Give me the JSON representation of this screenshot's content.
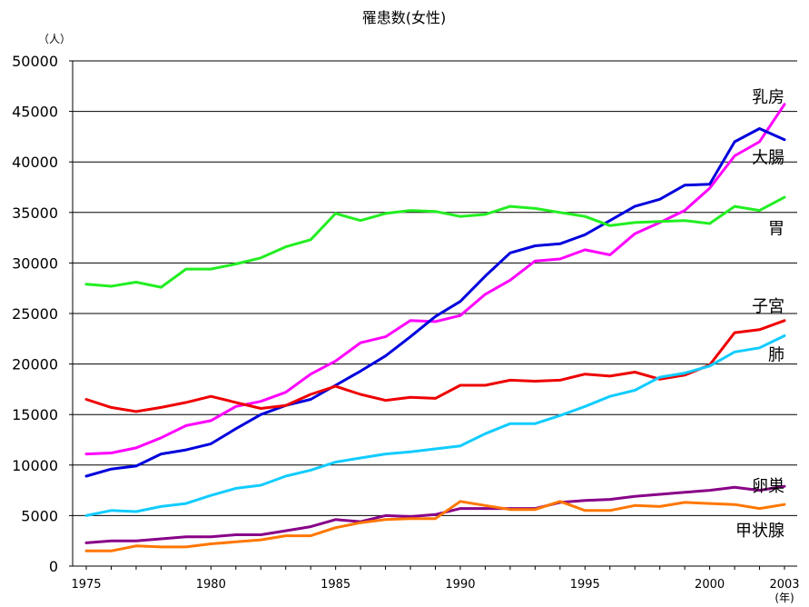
{
  "chart_data": {
    "type": "line",
    "title": "罹患数(女性)",
    "unit_label": "（人）",
    "x_end_label": "2003",
    "x_unit_label": "(年)",
    "x_tick_labels": [
      "1975",
      "1980",
      "1985",
      "1990",
      "1995",
      "2000"
    ],
    "y_tick_labels": [
      "0",
      "5000",
      "10000",
      "15000",
      "20000",
      "25000",
      "30000",
      "35000",
      "40000",
      "45000",
      "50000"
    ],
    "xlim": [
      1975,
      2003
    ],
    "ylim": [
      0,
      50000
    ],
    "grid": "horizontal",
    "x": [
      1975,
      1976,
      1977,
      1978,
      1979,
      1980,
      1981,
      1982,
      1983,
      1984,
      1985,
      1986,
      1987,
      1988,
      1989,
      1990,
      1991,
      1992,
      1993,
      1994,
      1995,
      1996,
      1997,
      1998,
      1999,
      2000,
      2001,
      2002,
      2003
    ],
    "series": [
      {
        "name": "乳房",
        "color": "#ff00ff",
        "values": [
          11100,
          11200,
          11700,
          12700,
          13900,
          14400,
          15800,
          16300,
          17200,
          19000,
          20300,
          22100,
          22700,
          24300,
          24200,
          24800,
          26900,
          28300,
          30200,
          30400,
          31300,
          30800,
          32900,
          34000,
          35200,
          37400,
          40600,
          42000,
          45700
        ]
      },
      {
        "name": "大腸",
        "color": "#0000dd",
        "values": [
          8900,
          9600,
          9900,
          11100,
          11500,
          12100,
          13600,
          15000,
          15900,
          16500,
          17900,
          19300,
          20800,
          22700,
          24700,
          26200,
          28700,
          31000,
          31700,
          31900,
          32800,
          34200,
          35600,
          36300,
          37700,
          37800,
          42000,
          43300,
          42200
        ]
      },
      {
        "name": "胃",
        "color": "#22ee22",
        "values": [
          27900,
          27700,
          28100,
          27600,
          29400,
          29400,
          29900,
          30500,
          31600,
          32300,
          34900,
          34200,
          34900,
          35200,
          35100,
          34600,
          34800,
          35600,
          35400,
          35000,
          34600,
          33700,
          34000,
          34100,
          34200,
          33900,
          35600,
          35200,
          36500
        ]
      },
      {
        "name": "子宮",
        "color": "#ee0000",
        "values": [
          16500,
          15700,
          15300,
          15700,
          16200,
          16800,
          16200,
          15600,
          15900,
          17000,
          17800,
          17000,
          16400,
          16700,
          16600,
          17900,
          17900,
          18400,
          18300,
          18400,
          19000,
          18800,
          19200,
          18500,
          18900,
          19900,
          23100,
          23400,
          24300
        ]
      },
      {
        "name": "肺",
        "color": "#11ccff",
        "values": [
          5000,
          5500,
          5400,
          5900,
          6200,
          7000,
          7700,
          8000,
          8900,
          9500,
          10300,
          10700,
          11100,
          11300,
          11600,
          11900,
          13100,
          14100,
          14100,
          14900,
          15800,
          16800,
          17400,
          18700,
          19100,
          19800,
          21200,
          21600,
          22800
        ]
      },
      {
        "name": "卵巣",
        "color": "#880088",
        "values": [
          2300,
          2500,
          2500,
          2700,
          2900,
          2900,
          3100,
          3100,
          3500,
          3900,
          4600,
          4400,
          5000,
          4900,
          5100,
          5700,
          5700,
          5700,
          5700,
          6300,
          6500,
          6600,
          6900,
          7100,
          7300,
          7500,
          7800,
          7500,
          7900
        ]
      },
      {
        "name": "甲状腺",
        "color": "#ff7700",
        "values": [
          1500,
          1500,
          2000,
          1900,
          1900,
          2200,
          2400,
          2600,
          3000,
          3000,
          3800,
          4300,
          4600,
          4700,
          4700,
          6400,
          6000,
          5600,
          5600,
          6400,
          5500,
          5500,
          6000,
          5900,
          6300,
          6200,
          6100,
          5700,
          6100
        ]
      }
    ],
    "series_label_values": [
      46500,
      40500,
      33500,
      25800,
      21000,
      8000,
      3600
    ]
  }
}
